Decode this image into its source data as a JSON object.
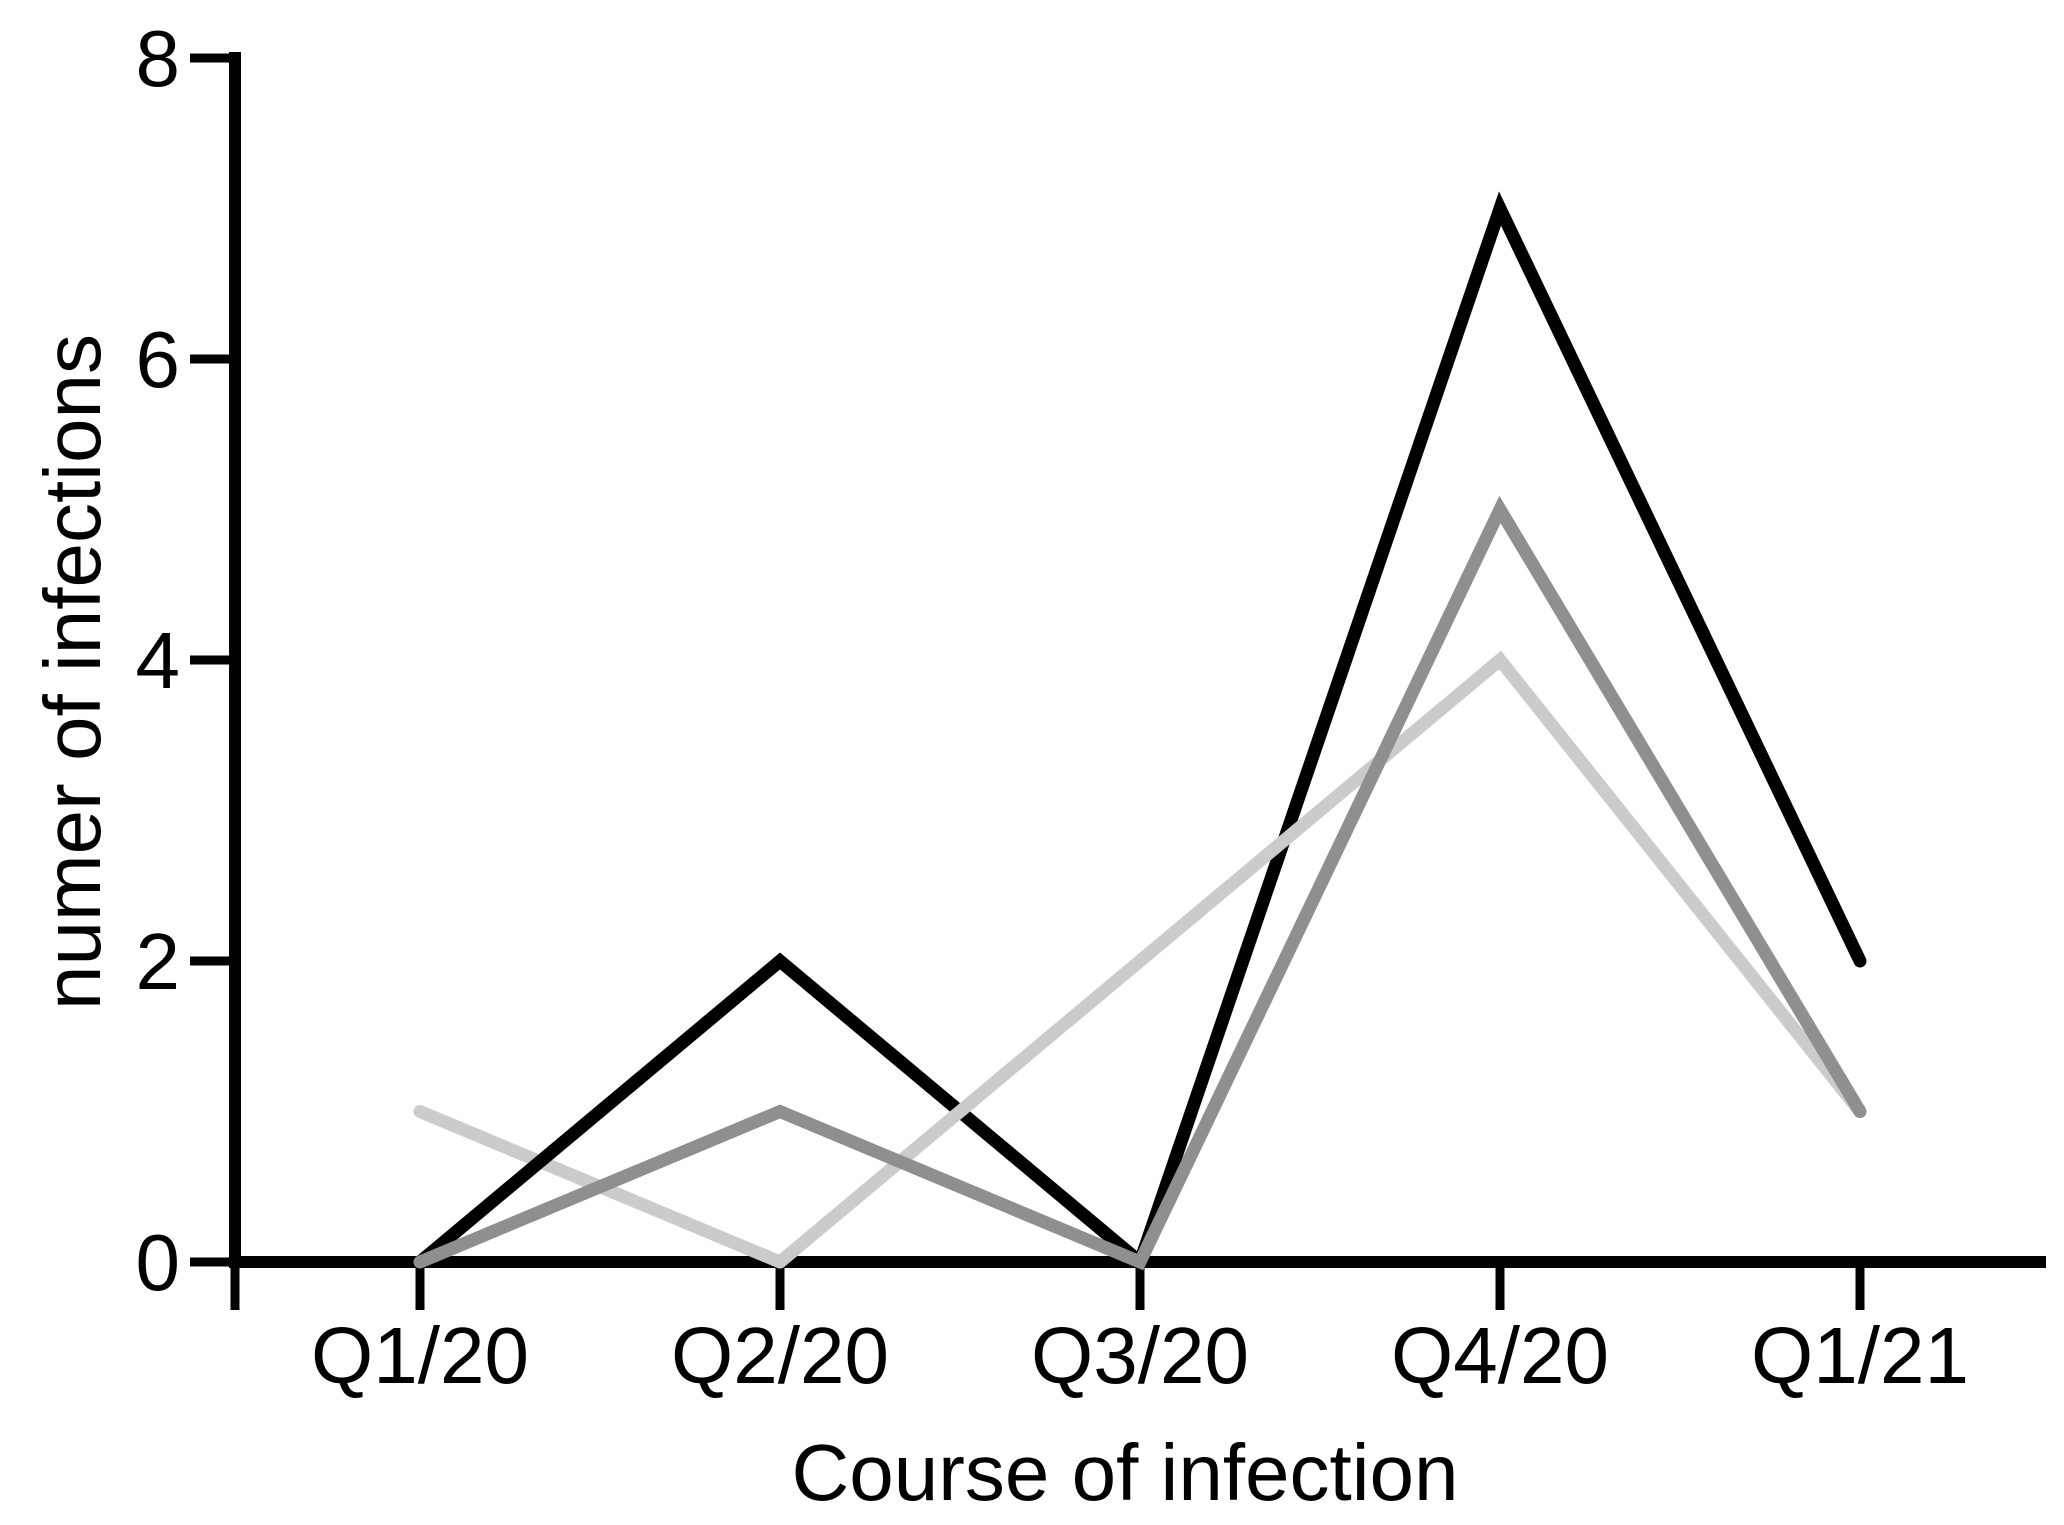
{
  "chart_data": {
    "type": "line",
    "title": "",
    "xlabel": "Course of infection",
    "ylabel": "numer of infections",
    "categories": [
      "Q1/20",
      "Q2/20",
      "Q3/20",
      "Q4/20",
      "Q1/21"
    ],
    "y_ticks": [
      0,
      2,
      4,
      6,
      8
    ],
    "ylim": [
      0,
      8
    ],
    "grid": false,
    "legend_position": "none",
    "background_color": "#ffffff",
    "axis_color": "#000000",
    "series": [
      {
        "name": "black-series",
        "color": "#000000",
        "values": [
          0,
          2,
          0,
          7,
          2
        ]
      },
      {
        "name": "dark-gray-series",
        "color": "#8f8f8f",
        "values": [
          0,
          1,
          0,
          5,
          1
        ]
      },
      {
        "name": "light-gray-series",
        "color": "#cbcbcb",
        "values": [
          1,
          0,
          2,
          4,
          1
        ]
      }
    ],
    "layers": [
      {
        "series": 2,
        "from": 0,
        "to": 1
      },
      {
        "series": 0,
        "from": 0,
        "to": 4
      },
      {
        "series": 2,
        "from": 1,
        "to": 4
      },
      {
        "series": 1,
        "from": 0,
        "to": 4
      }
    ]
  }
}
